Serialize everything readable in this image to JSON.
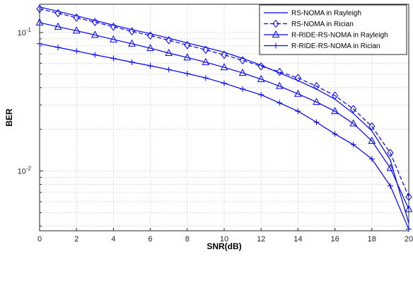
{
  "chart_data": {
    "type": "line",
    "xlabel": "SNR(dB)",
    "ylabel": "BER",
    "xlim": [
      0,
      20
    ],
    "ylim": [
      0.0037,
      0.16
    ],
    "yscale": "log",
    "grid": true,
    "legend_position": "top-right",
    "x_ticks": [
      "0",
      "2",
      "4",
      "6",
      "8",
      "10",
      "12",
      "14",
      "16",
      "18",
      "20"
    ],
    "y_ticks": [
      {
        "base": "10",
        "exp": "-2",
        "value": 0.01
      },
      {
        "base": "10",
        "exp": "-1",
        "value": 0.1
      }
    ],
    "x": [
      0,
      1,
      2,
      3,
      4,
      5,
      6,
      7,
      8,
      9,
      10,
      11,
      12,
      13,
      14,
      15,
      16,
      17,
      18,
      19,
      20
    ],
    "series": [
      {
        "name": "RS-NOMA in Rayleigh",
        "color": "#0000ff",
        "line": "solid",
        "marker": "none",
        "values": [
          0.153,
          0.142,
          0.132,
          0.122,
          0.113,
          0.105,
          0.098,
          0.091,
          0.084,
          0.078,
          0.072,
          0.065,
          0.058,
          0.051,
          0.045,
          0.039,
          0.033,
          0.026,
          0.0195,
          0.012,
          0.0042
        ]
      },
      {
        "name": "RS-NOMA in Rician",
        "color": "#0000ff",
        "line": "dashed",
        "marker": "diamond",
        "values": [
          0.148,
          0.138,
          0.128,
          0.119,
          0.11,
          0.102,
          0.095,
          0.088,
          0.081,
          0.075,
          0.069,
          0.063,
          0.057,
          0.052,
          0.047,
          0.041,
          0.035,
          0.028,
          0.021,
          0.0135,
          0.0065
        ]
      },
      {
        "name": "R-RIDE-RS-NOMA in Rayleigh",
        "color": "#0000ff",
        "line": "solid",
        "marker": "triangle",
        "values": [
          0.118,
          0.11,
          0.103,
          0.096,
          0.089,
          0.083,
          0.077,
          0.071,
          0.066,
          0.061,
          0.056,
          0.051,
          0.046,
          0.041,
          0.036,
          0.0315,
          0.027,
          0.022,
          0.0165,
          0.0105,
          0.0053
        ]
      },
      {
        "name": "R-RIDE-RS-NOMA in Rician",
        "color": "#0000ff",
        "line": "solid",
        "marker": "plus",
        "values": [
          0.083,
          0.078,
          0.0735,
          0.069,
          0.065,
          0.061,
          0.0575,
          0.054,
          0.0505,
          0.047,
          0.043,
          0.039,
          0.0355,
          0.031,
          0.027,
          0.0225,
          0.0185,
          0.0155,
          0.0122,
          0.0078,
          0.0038
        ]
      }
    ]
  }
}
